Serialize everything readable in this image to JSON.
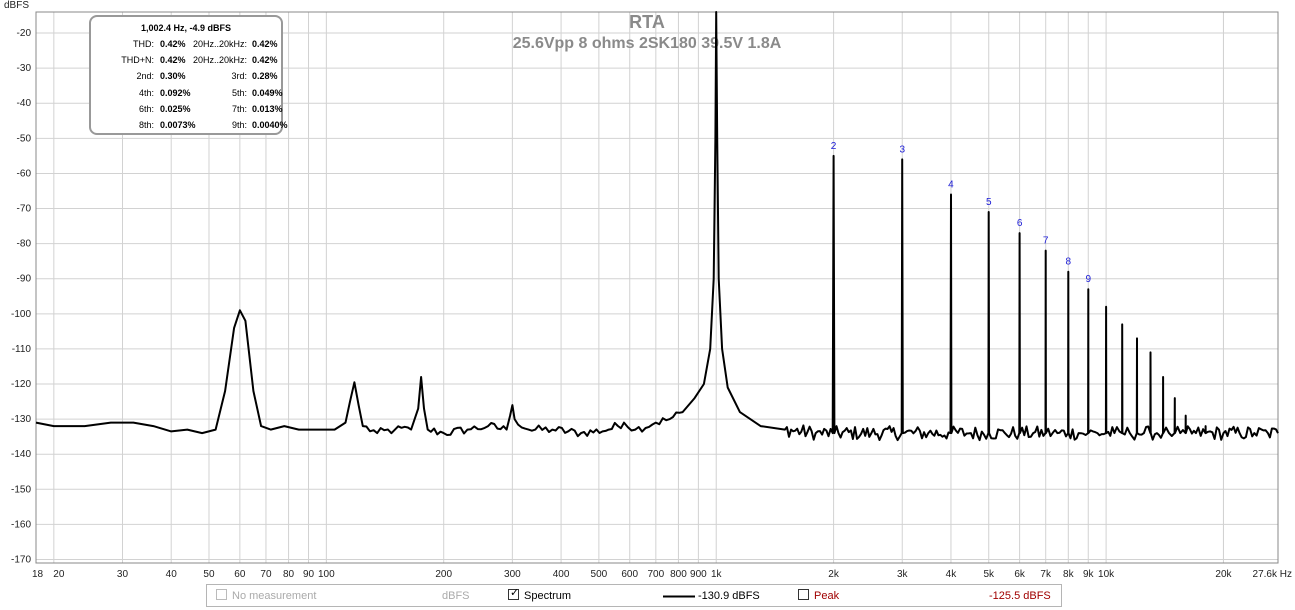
{
  "chart_data": {
    "type": "line",
    "title": "RTA",
    "subtitle": "25.6Vpp 8 ohms 2SK180 39.5V 1.8A",
    "ylabel": "dBFS",
    "xunit": "Hz",
    "xscale": "log",
    "xlim": [
      18,
      27600
    ],
    "ylim": [
      -171,
      -14
    ],
    "grid": true,
    "y_ticks": [
      -20,
      -30,
      -40,
      -50,
      -60,
      -70,
      -80,
      -90,
      -100,
      -110,
      -120,
      -130,
      -140,
      -150,
      -160,
      -170
    ],
    "x_ticks": [
      {
        "v": 18,
        "l": "18"
      },
      {
        "v": 20,
        "l": "20"
      },
      {
        "v": 30,
        "l": "30"
      },
      {
        "v": 40,
        "l": "40"
      },
      {
        "v": 50,
        "l": "50"
      },
      {
        "v": 60,
        "l": "60"
      },
      {
        "v": 70,
        "l": "70"
      },
      {
        "v": 80,
        "l": "80"
      },
      {
        "v": 90,
        "l": "90"
      },
      {
        "v": 100,
        "l": "100"
      },
      {
        "v": 200,
        "l": "200"
      },
      {
        "v": 300,
        "l": "300"
      },
      {
        "v": 400,
        "l": "400"
      },
      {
        "v": 500,
        "l": "500"
      },
      {
        "v": 600,
        "l": "600"
      },
      {
        "v": 700,
        "l": "700"
      },
      {
        "v": 800,
        "l": "800"
      },
      {
        "v": 900,
        "l": "900"
      },
      {
        "v": 1000,
        "l": "1k"
      },
      {
        "v": 2000,
        "l": "2k"
      },
      {
        "v": 3000,
        "l": "3k"
      },
      {
        "v": 4000,
        "l": "4k"
      },
      {
        "v": 5000,
        "l": "5k"
      },
      {
        "v": 6000,
        "l": "6k"
      },
      {
        "v": 7000,
        "l": "7k"
      },
      {
        "v": 8000,
        "l": "8k"
      },
      {
        "v": 9000,
        "l": "9k"
      },
      {
        "v": 10000,
        "l": "10k"
      },
      {
        "v": 20000,
        "l": "20k"
      },
      {
        "v": 27600,
        "l": "27.6k Hz"
      }
    ],
    "series": [
      {
        "points": [
          [
            18,
            -131
          ],
          [
            20,
            -132
          ],
          [
            24,
            -132
          ],
          [
            28,
            -131
          ],
          [
            32,
            -131
          ],
          [
            36,
            -132
          ],
          [
            40,
            -133.5
          ],
          [
            44,
            -133
          ],
          [
            48,
            -134
          ],
          [
            52,
            -133
          ],
          [
            55,
            -122
          ],
          [
            58,
            -104
          ],
          [
            60,
            -99
          ],
          [
            62,
            -102
          ],
          [
            65,
            -122
          ],
          [
            68,
            -132
          ],
          [
            72,
            -133
          ],
          [
            78,
            -132
          ],
          [
            85,
            -133
          ],
          [
            95,
            -133
          ],
          [
            105,
            -133
          ],
          [
            112,
            -131
          ],
          [
            115,
            -125
          ],
          [
            118,
            -119.5
          ],
          [
            121,
            -126
          ],
          [
            124,
            -132
          ],
          [
            135,
            -134
          ],
          [
            150,
            -133
          ],
          [
            165,
            -133
          ],
          [
            172,
            -127
          ],
          [
            175,
            -118
          ],
          [
            178,
            -127
          ],
          [
            182,
            -133
          ],
          [
            200,
            -134
          ],
          [
            230,
            -133
          ],
          [
            260,
            -132
          ],
          [
            290,
            -133
          ],
          [
            296,
            -129
          ],
          [
            300,
            -126
          ],
          [
            304,
            -130
          ],
          [
            330,
            -133
          ],
          [
            380,
            -133
          ],
          [
            450,
            -134
          ],
          [
            530,
            -133
          ],
          [
            580,
            -131
          ],
          [
            620,
            -133
          ],
          [
            700,
            -131
          ],
          [
            760,
            -130
          ],
          [
            820,
            -128
          ],
          [
            880,
            -124
          ],
          [
            930,
            -120
          ],
          [
            965,
            -110
          ],
          [
            985,
            -90
          ],
          [
            995,
            -50
          ],
          [
            1000,
            -14
          ],
          [
            1006,
            -50
          ],
          [
            1015,
            -90
          ],
          [
            1035,
            -110
          ],
          [
            1070,
            -121
          ],
          [
            1150,
            -128
          ],
          [
            1300,
            -132
          ],
          [
            1500,
            -133
          ],
          [
            1800,
            -134
          ],
          [
            1990,
            -134
          ],
          [
            2000,
            -55
          ],
          [
            2010,
            -134
          ],
          [
            2500,
            -134
          ],
          [
            2990,
            -134
          ],
          [
            3000,
            -56
          ],
          [
            3010,
            -134
          ],
          [
            3500,
            -134
          ],
          [
            3990,
            -134
          ],
          [
            4000,
            -66
          ],
          [
            4010,
            -134
          ],
          [
            4500,
            -134
          ],
          [
            4990,
            -134
          ],
          [
            5000,
            -71
          ],
          [
            5010,
            -134
          ],
          [
            5500,
            -134
          ],
          [
            5990,
            -134
          ],
          [
            6000,
            -77
          ],
          [
            6010,
            -134
          ],
          [
            6500,
            -134
          ],
          [
            6990,
            -134
          ],
          [
            7000,
            -82
          ],
          [
            7010,
            -134
          ],
          [
            7500,
            -134
          ],
          [
            7990,
            -134
          ],
          [
            8000,
            -88
          ],
          [
            8010,
            -134
          ],
          [
            8500,
            -134
          ],
          [
            8990,
            -134
          ],
          [
            9000,
            -93
          ],
          [
            9010,
            -134
          ],
          [
            9500,
            -134
          ],
          [
            9990,
            -134
          ],
          [
            10000,
            -98
          ],
          [
            10010,
            -134
          ],
          [
            10500,
            -134
          ],
          [
            10990,
            -134
          ],
          [
            11000,
            -103
          ],
          [
            11010,
            -134
          ],
          [
            11500,
            -134
          ],
          [
            11990,
            -134
          ],
          [
            12000,
            -107
          ],
          [
            12010,
            -134
          ],
          [
            12500,
            -134
          ],
          [
            12990,
            -134
          ],
          [
            13000,
            -111
          ],
          [
            13010,
            -134
          ],
          [
            13500,
            -134
          ],
          [
            13990,
            -134
          ],
          [
            14000,
            -118
          ],
          [
            14010,
            -134
          ],
          [
            14500,
            -134
          ],
          [
            14990,
            -134
          ],
          [
            15000,
            -124
          ],
          [
            15010,
            -134
          ],
          [
            15500,
            -134
          ],
          [
            15990,
            -134
          ],
          [
            16000,
            -129
          ],
          [
            16010,
            -134
          ],
          [
            17000,
            -134
          ],
          [
            17990,
            -134
          ],
          [
            18000,
            -132
          ],
          [
            18010,
            -134
          ],
          [
            20000,
            -134
          ],
          [
            22000,
            -134
          ],
          [
            24000,
            -134
          ],
          [
            26000,
            -134
          ],
          [
            27600,
            -134
          ]
        ]
      }
    ],
    "harmonic_labels": [
      {
        "n": "2",
        "x": 2000,
        "y": -53
      },
      {
        "n": "3",
        "x": 3000,
        "y": -54
      },
      {
        "n": "4",
        "x": 4000,
        "y": -64
      },
      {
        "n": "5",
        "x": 5000,
        "y": -69
      },
      {
        "n": "6",
        "x": 6000,
        "y": -75
      },
      {
        "n": "7",
        "x": 7000,
        "y": -80
      },
      {
        "n": "8",
        "x": 8000,
        "y": -86
      },
      {
        "n": "9",
        "x": 9000,
        "y": -91
      }
    ]
  },
  "info": {
    "header": "1,002.4 Hz, -4.9 dBFS",
    "rows": [
      {
        "l1": "THD:",
        "v1": "0.42%",
        "l2": "20Hz..20kHz:",
        "v2": "0.42%"
      },
      {
        "l1": "THD+N:",
        "v1": "0.42%",
        "l2": "20Hz..20kHz:",
        "v2": "0.42%"
      },
      {
        "l1": "2nd:",
        "v1": "0.30%",
        "l2": "3rd:",
        "v2": "0.28%"
      },
      {
        "l1": "4th:",
        "v1": "0.092%",
        "l2": "5th:",
        "v2": "0.049%"
      },
      {
        "l1": "6th:",
        "v1": "0.025%",
        "l2": "7th:",
        "v2": "0.013%"
      },
      {
        "l1": "8th:",
        "v1": "0.0073%",
        "l2": "9th:",
        "v2": "0.0040%"
      }
    ]
  },
  "legend": {
    "no_measurement": "No measurement",
    "unit": "dBFS",
    "spectrum_label": "Spectrum",
    "spectrum_checked": true,
    "spectrum_value": "-130.9 dBFS",
    "peak_label": "Peak",
    "peak_checked": false,
    "peak_value": "-125.5 dBFS",
    "peak_color": "#a00000"
  }
}
